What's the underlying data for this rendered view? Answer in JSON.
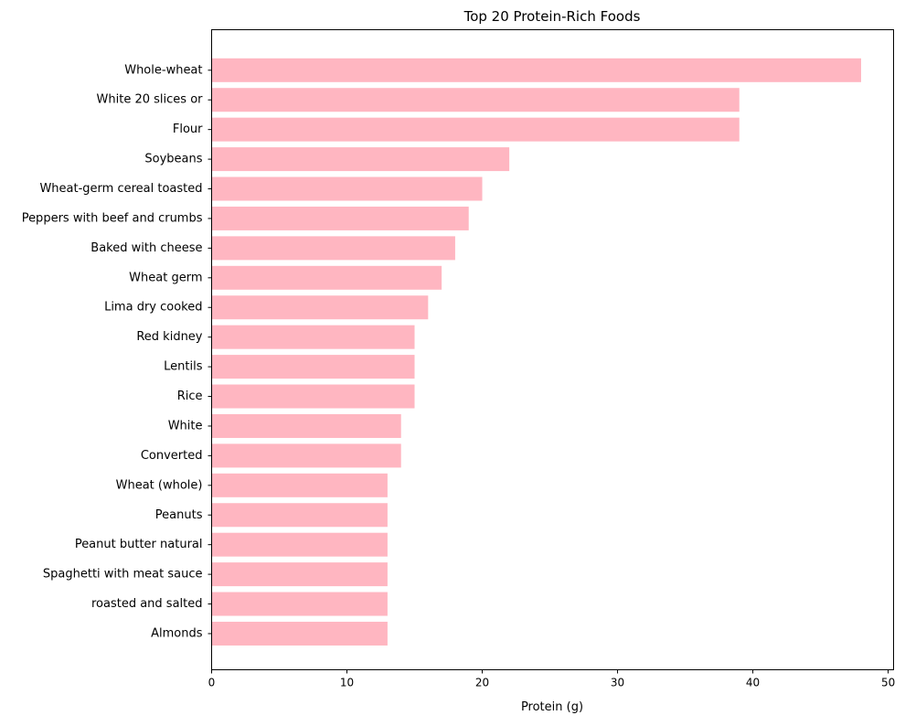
{
  "chart_data": {
    "type": "bar",
    "orientation": "horizontal",
    "title": "Top 20 Protein-Rich Foods",
    "xlabel": "Protein (g)",
    "ylabel": "",
    "xlim": [
      0,
      50.4
    ],
    "xticks": [
      0,
      10,
      20,
      30,
      40,
      50
    ],
    "grid": false,
    "bar_color": "#ffb6c1",
    "categories": [
      "Whole-wheat",
      "White 20 slices or",
      "Flour",
      "Soybeans",
      "Wheat-germ cereal toasted",
      "Peppers with beef and crumbs",
      "Baked with cheese",
      "Wheat germ",
      "Lima dry cooked",
      "Red kidney",
      "Lentils",
      "Rice",
      "White",
      "Converted",
      "Wheat (whole)",
      "Peanuts",
      "Peanut butter natural",
      "Spaghetti with meat sauce",
      "roasted and salted",
      "Almonds"
    ],
    "values": [
      48,
      39,
      39,
      22,
      20,
      19,
      18,
      17,
      16,
      15,
      15,
      15,
      14,
      14,
      13,
      13,
      13,
      13,
      13,
      13
    ]
  }
}
